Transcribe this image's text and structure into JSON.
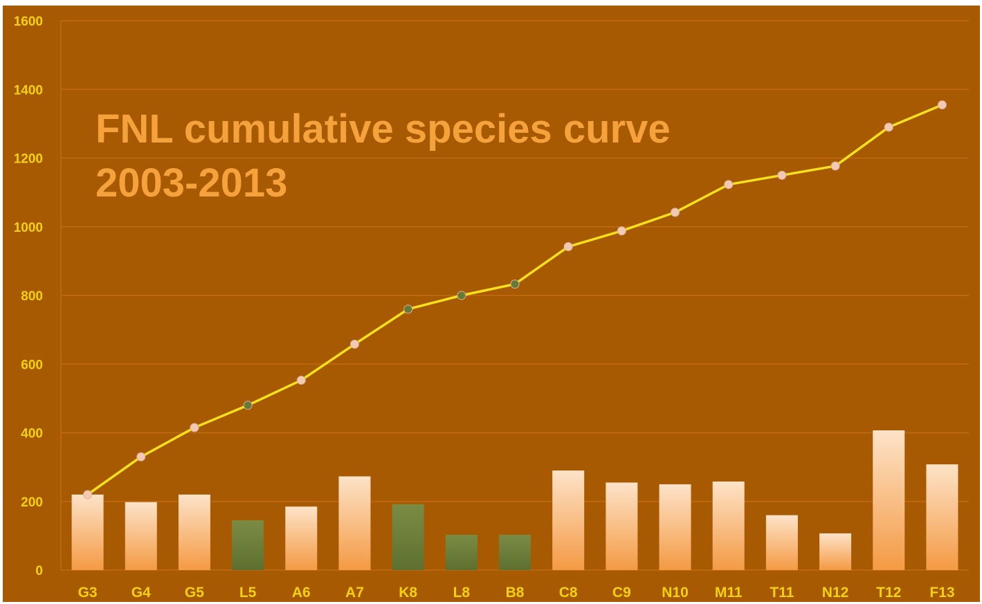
{
  "chart_data": {
    "type": "bar",
    "title_lines": [
      "FNL cumulative species curve",
      "2003-2013"
    ],
    "categories": [
      "G3",
      "G4",
      "G5",
      "L5",
      "A6",
      "A7",
      "K8",
      "L8",
      "B8",
      "C8",
      "C9",
      "N10",
      "M11",
      "T11",
      "N12",
      "T12",
      "F13"
    ],
    "series": [
      {
        "type": "bar",
        "values": [
          220,
          198,
          220,
          145,
          185,
          273,
          192,
          103,
          103,
          290,
          255,
          250,
          258,
          160,
          107,
          407,
          308
        ]
      },
      {
        "type": "line",
        "values": [
          220,
          330,
          415,
          480,
          553,
          658,
          760,
          800,
          833,
          942,
          988,
          1042,
          1123,
          1150,
          1177,
          1290,
          1355
        ]
      }
    ],
    "highlight_categories": [
      "L5",
      "K8",
      "L8",
      "B8"
    ],
    "ylim": [
      0,
      1600
    ],
    "yticks": [
      0,
      200,
      400,
      600,
      800,
      1000,
      1200,
      1400,
      1600
    ],
    "grid": true,
    "legend": "none",
    "colors": {
      "background": "#a85a02",
      "gridline": "#c26a12",
      "axis_text": "#f2d20c",
      "title": "#f5a23c",
      "bar_light_top": "#fde3c8",
      "bar_light_bottom": "#f49a44",
      "bar_highlight": "#667a35",
      "line": "#f7e21a",
      "marker_light": "#f4c9b2",
      "marker_highlight": "#667a35"
    }
  }
}
